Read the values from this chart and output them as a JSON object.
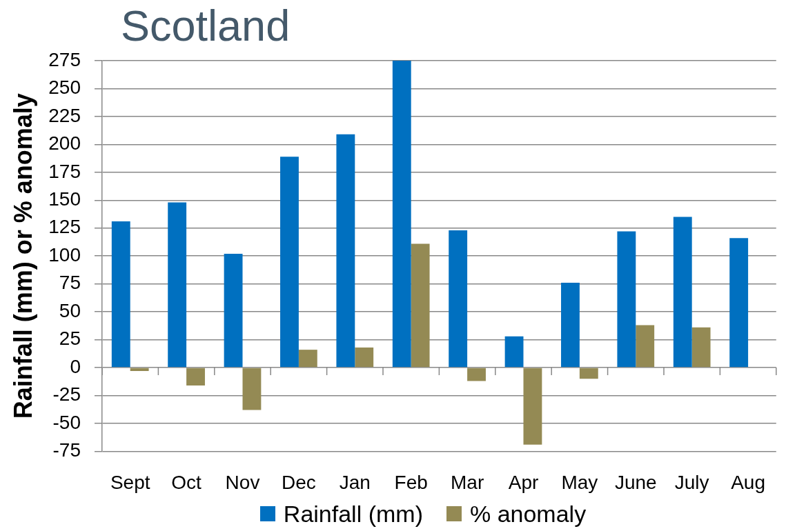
{
  "chart_data": {
    "type": "bar",
    "title": "Scotland",
    "ylabel": "Rainfall (mm) or % anomaly",
    "categories": [
      "Sept",
      "Oct",
      "Nov",
      "Dec",
      "Jan",
      "Feb",
      "Mar",
      "Apr",
      "May",
      "June",
      "July",
      "Aug"
    ],
    "series": [
      {
        "name": "Rainfall (mm)",
        "color": "#0070c0",
        "values": [
          131,
          148,
          102,
          189,
          209,
          275,
          123,
          28,
          76,
          122,
          135,
          116
        ]
      },
      {
        "name": "% anomaly",
        "color": "#948a54",
        "values": [
          -3,
          -16,
          -38,
          16,
          18,
          111,
          -12,
          -69,
          -10,
          38,
          36,
          null
        ]
      }
    ],
    "ylim": [
      -75,
      275
    ],
    "yticks": [
      -75,
      -50,
      -25,
      0,
      25,
      50,
      75,
      100,
      125,
      150,
      175,
      200,
      225,
      250,
      275
    ],
    "grid": "y",
    "legend": "bottom"
  }
}
